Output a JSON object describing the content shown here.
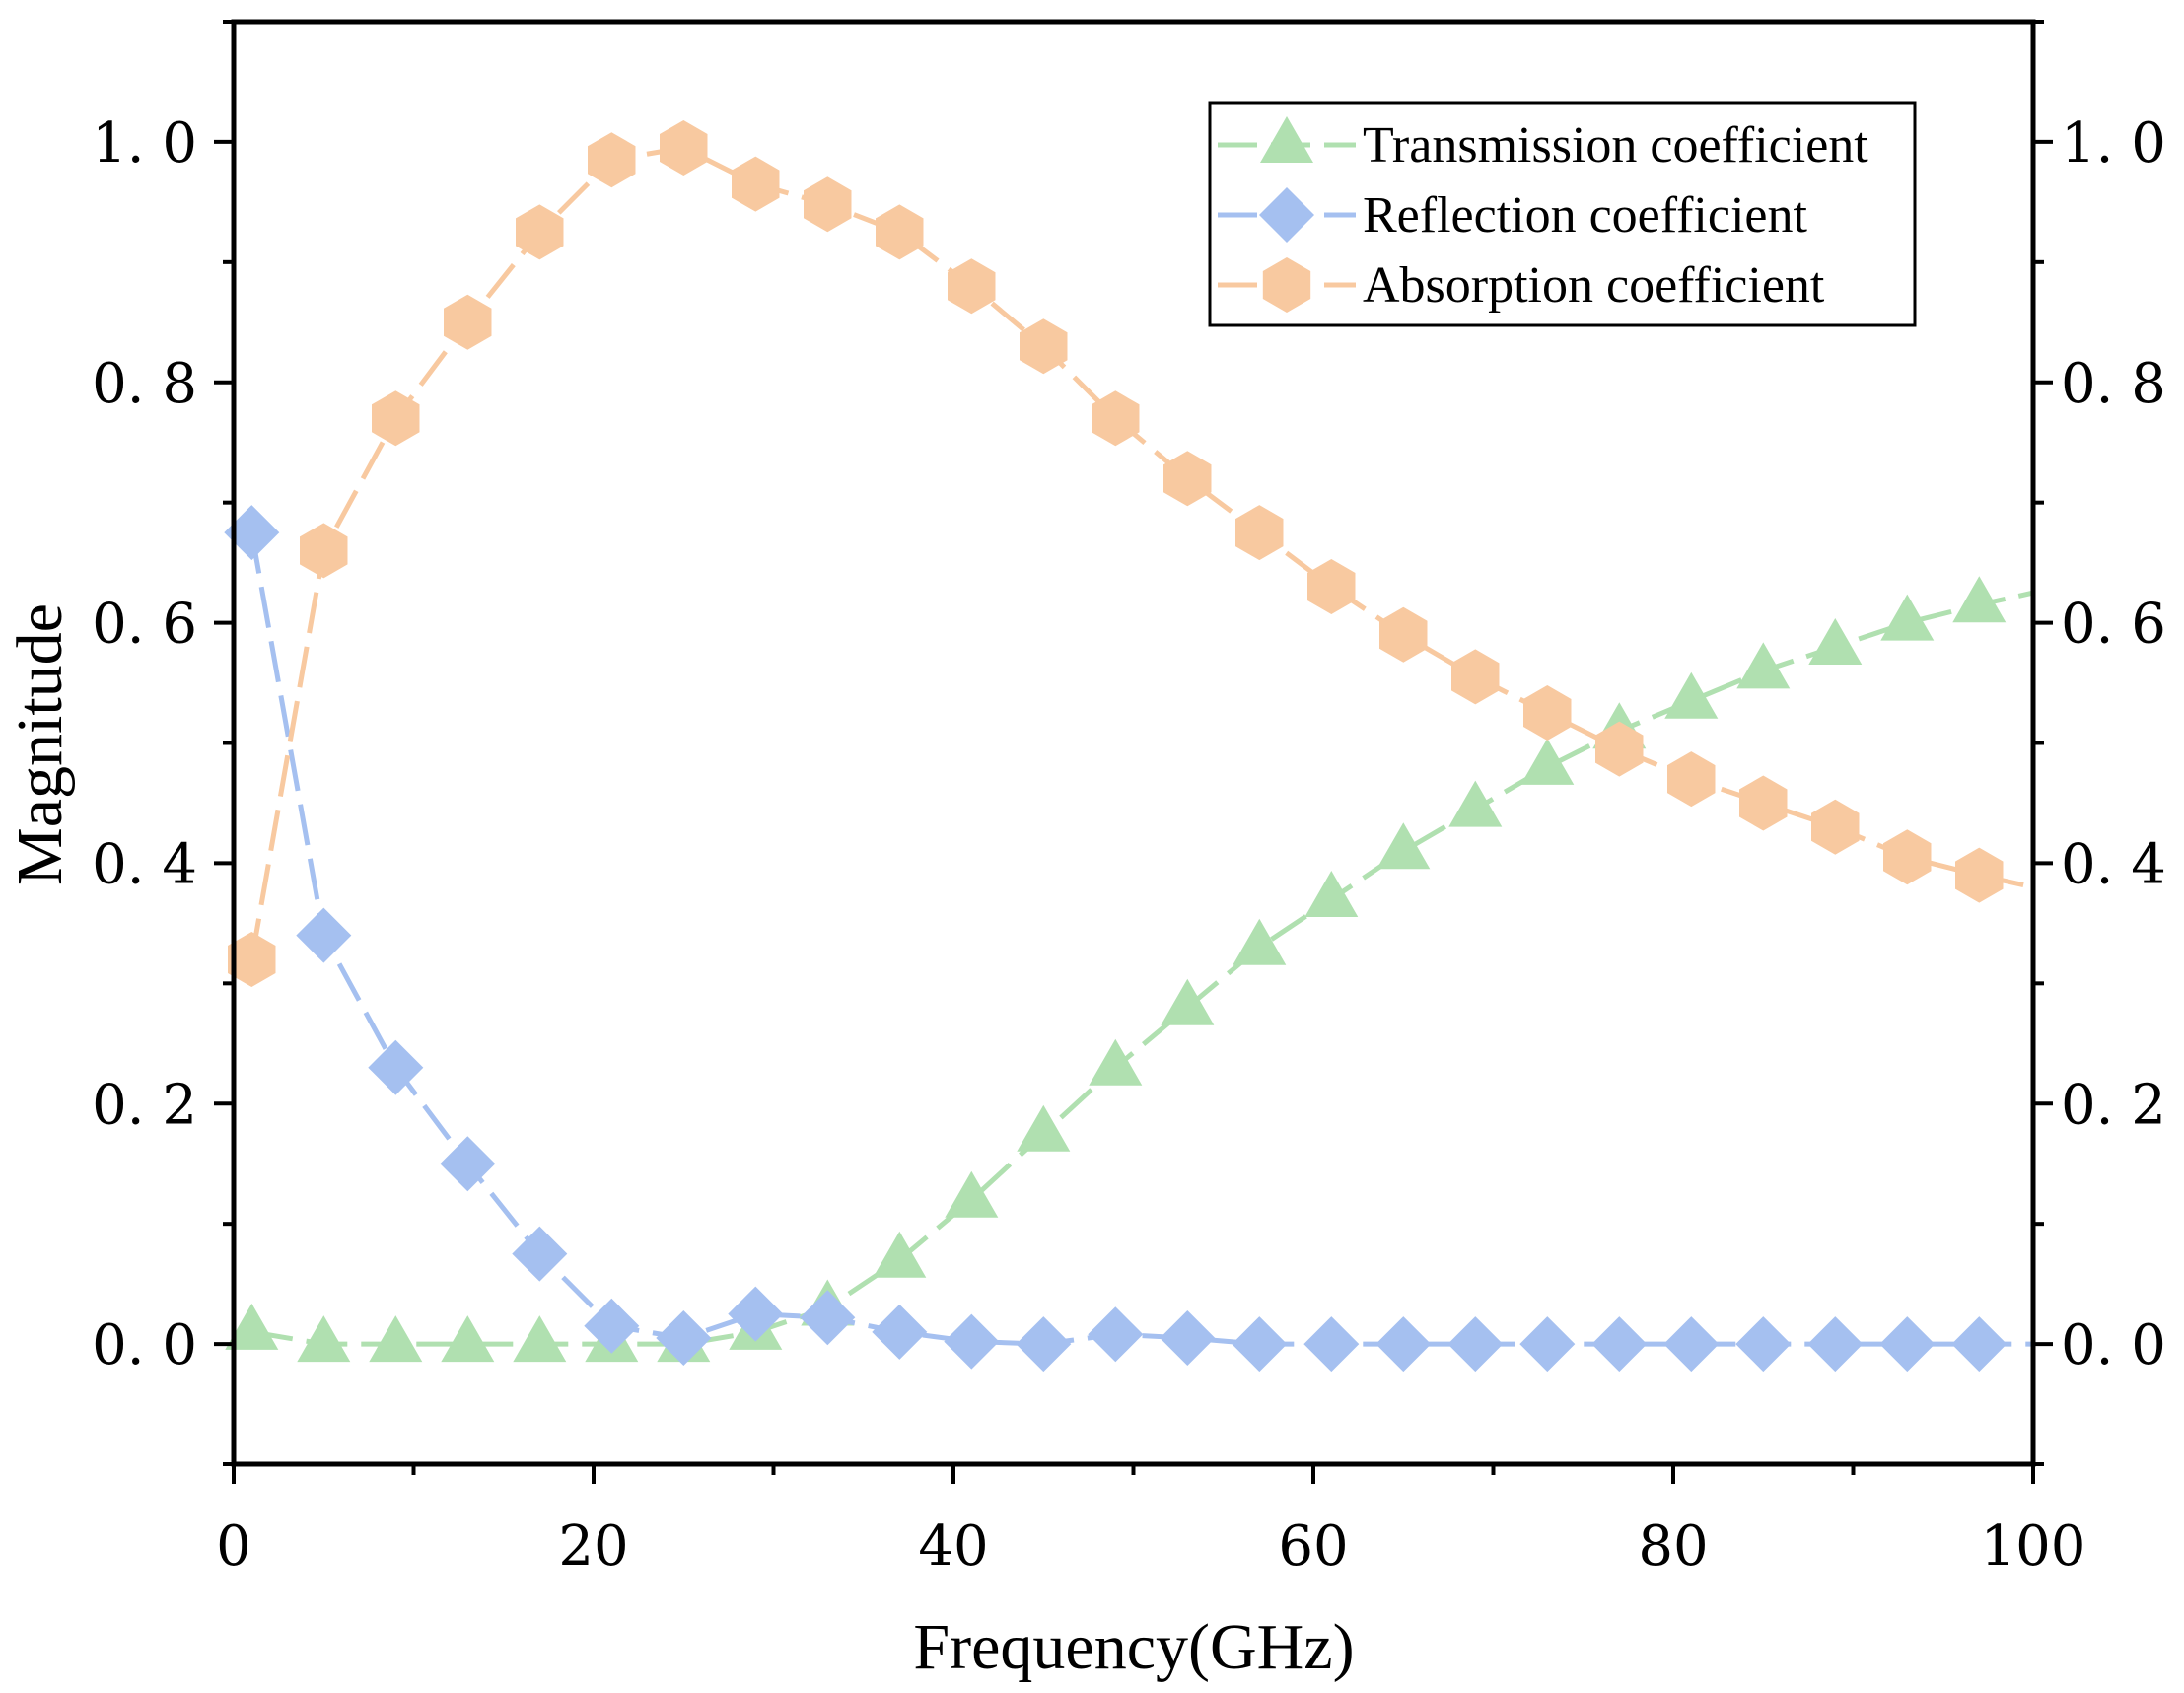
{
  "chart_data": {
    "type": "line",
    "title": "",
    "xlabel": "Frequency(GHz)",
    "ylabel": "Magnitude",
    "xlim": [
      0,
      100
    ],
    "ylim": [
      -0.1,
      1.1
    ],
    "x_ticks": [
      0,
      20,
      40,
      60,
      80,
      100
    ],
    "x_tick_labels": [
      "0",
      "20",
      "40",
      "60",
      "80",
      "100"
    ],
    "y_ticks": [
      0.0,
      0.2,
      0.4,
      0.6,
      0.8,
      1.0
    ],
    "y_tick_labels": [
      "0. 0",
      "0. 2",
      "0. 4",
      "0. 6",
      "0. 8",
      "1. 0"
    ],
    "right_axis_mirrors_left": true,
    "grid": false,
    "legend_position": "top-right",
    "x": [
      1,
      5,
      9,
      13,
      17,
      21,
      25,
      29,
      33,
      37,
      41,
      45,
      49,
      53,
      57,
      61,
      65,
      69,
      73,
      77,
      81,
      85,
      89,
      93,
      97
    ],
    "series": [
      {
        "name": "Transmission coefficient",
        "color": "#b0e0b0",
        "marker": "triangle",
        "line_style": "dashed",
        "values": [
          0.01,
          0.0,
          0.0,
          0.0,
          0.0,
          0.0,
          0.0,
          0.01,
          0.03,
          0.07,
          0.12,
          0.175,
          0.23,
          0.28,
          0.33,
          0.37,
          0.41,
          0.445,
          0.48,
          0.51,
          0.535,
          0.56,
          0.58,
          0.6,
          0.615
        ],
        "line_end": {
          "x": 100,
          "y": 0.625
        }
      },
      {
        "name": "Reflection coefficient",
        "color": "#a5c0f0",
        "marker": "diamond",
        "line_style": "dashed",
        "values": [
          0.675,
          0.34,
          0.23,
          0.15,
          0.075,
          0.015,
          0.005,
          0.025,
          0.022,
          0.01,
          0.002,
          0.0,
          0.008,
          0.005,
          0.0,
          0.0,
          0.0,
          0.0,
          0.0,
          0.0,
          0.0,
          0.0,
          0.0,
          0.0,
          0.0
        ],
        "line_end": {
          "x": 100,
          "y": 0.0
        }
      },
      {
        "name": "Absorption coefficient",
        "color": "#f8c9a0",
        "marker": "hexagon",
        "line_style": "dashed",
        "values": [
          0.32,
          0.66,
          0.77,
          0.85,
          0.925,
          0.985,
          0.995,
          0.965,
          0.948,
          0.925,
          0.88,
          0.83,
          0.77,
          0.72,
          0.675,
          0.63,
          0.59,
          0.555,
          0.525,
          0.495,
          0.47,
          0.45,
          0.43,
          0.405,
          0.39
        ],
        "line_end": {
          "x": 100,
          "y": 0.38
        }
      }
    ]
  }
}
